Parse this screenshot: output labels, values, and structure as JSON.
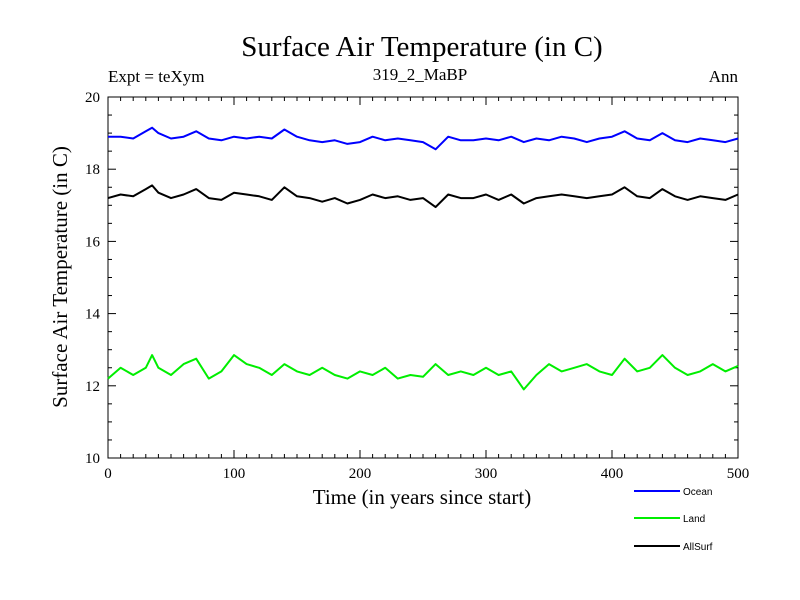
{
  "chart_data": {
    "type": "line",
    "title": "Surface Air Temperature (in C)",
    "subtitle": "319_2_MaBP",
    "left_note": "Expt = teXym",
    "right_note": "Ann",
    "xlabel": "Time (in years since start)",
    "ylabel": "Surface Air Temperature (in C)",
    "xlim": [
      0,
      500
    ],
    "ylim": [
      10,
      20
    ],
    "xticks": [
      0,
      100,
      200,
      300,
      400,
      500
    ],
    "yticks": [
      10,
      12,
      14,
      16,
      18,
      20
    ],
    "grid": false,
    "legend_position": "bottom-right, outside plot",
    "series": [
      {
        "name": "Ocean",
        "color": "#0000ff",
        "x": [
          0,
          10,
          20,
          30,
          35,
          40,
          50,
          60,
          70,
          80,
          90,
          100,
          110,
          120,
          130,
          140,
          150,
          160,
          170,
          180,
          190,
          200,
          210,
          220,
          230,
          240,
          250,
          260,
          270,
          280,
          290,
          300,
          310,
          320,
          330,
          340,
          350,
          360,
          370,
          380,
          390,
          400,
          410,
          420,
          430,
          440,
          450,
          460,
          470,
          480,
          490,
          500
        ],
        "values": [
          18.9,
          18.9,
          18.85,
          19.05,
          19.15,
          19.0,
          18.85,
          18.9,
          19.05,
          18.85,
          18.8,
          18.9,
          18.85,
          18.9,
          18.85,
          19.1,
          18.9,
          18.8,
          18.75,
          18.8,
          18.7,
          18.75,
          18.9,
          18.8,
          18.85,
          18.8,
          18.75,
          18.55,
          18.9,
          18.8,
          18.8,
          18.85,
          18.8,
          18.9,
          18.75,
          18.85,
          18.8,
          18.9,
          18.85,
          18.75,
          18.85,
          18.9,
          19.05,
          18.85,
          18.8,
          19.0,
          18.8,
          18.75,
          18.85,
          18.8,
          18.75,
          18.85
        ]
      },
      {
        "name": "Land",
        "color": "#00ee00",
        "x": [
          0,
          10,
          20,
          30,
          35,
          40,
          50,
          60,
          70,
          80,
          90,
          100,
          110,
          120,
          130,
          140,
          150,
          160,
          170,
          180,
          190,
          200,
          210,
          220,
          230,
          240,
          250,
          260,
          270,
          280,
          290,
          300,
          310,
          320,
          330,
          340,
          350,
          360,
          370,
          380,
          390,
          400,
          410,
          420,
          430,
          440,
          450,
          460,
          470,
          480,
          490,
          500
        ],
        "values": [
          12.2,
          12.5,
          12.3,
          12.5,
          12.85,
          12.5,
          12.3,
          12.6,
          12.75,
          12.2,
          12.4,
          12.85,
          12.6,
          12.5,
          12.3,
          12.6,
          12.4,
          12.3,
          12.5,
          12.3,
          12.2,
          12.4,
          12.3,
          12.5,
          12.2,
          12.3,
          12.25,
          12.6,
          12.3,
          12.4,
          12.3,
          12.5,
          12.3,
          12.4,
          11.9,
          12.3,
          12.6,
          12.4,
          12.5,
          12.6,
          12.4,
          12.3,
          12.75,
          12.4,
          12.5,
          12.85,
          12.5,
          12.3,
          12.4,
          12.6,
          12.4,
          12.55
        ]
      },
      {
        "name": "AllSurf",
        "color": "#000000",
        "x": [
          0,
          10,
          20,
          30,
          35,
          40,
          50,
          60,
          70,
          80,
          90,
          100,
          110,
          120,
          130,
          140,
          150,
          160,
          170,
          180,
          190,
          200,
          210,
          220,
          230,
          240,
          250,
          260,
          270,
          280,
          290,
          300,
          310,
          320,
          330,
          340,
          350,
          360,
          370,
          380,
          390,
          400,
          410,
          420,
          430,
          440,
          450,
          460,
          470,
          480,
          490,
          500
        ],
        "values": [
          17.2,
          17.3,
          17.25,
          17.45,
          17.55,
          17.35,
          17.2,
          17.3,
          17.45,
          17.2,
          17.15,
          17.35,
          17.3,
          17.25,
          17.15,
          17.5,
          17.25,
          17.2,
          17.1,
          17.2,
          17.05,
          17.15,
          17.3,
          17.2,
          17.25,
          17.15,
          17.2,
          16.95,
          17.3,
          17.2,
          17.2,
          17.3,
          17.15,
          17.3,
          17.05,
          17.2,
          17.25,
          17.3,
          17.25,
          17.2,
          17.25,
          17.3,
          17.5,
          17.25,
          17.2,
          17.45,
          17.25,
          17.15,
          17.25,
          17.2,
          17.15,
          17.3
        ]
      }
    ]
  }
}
